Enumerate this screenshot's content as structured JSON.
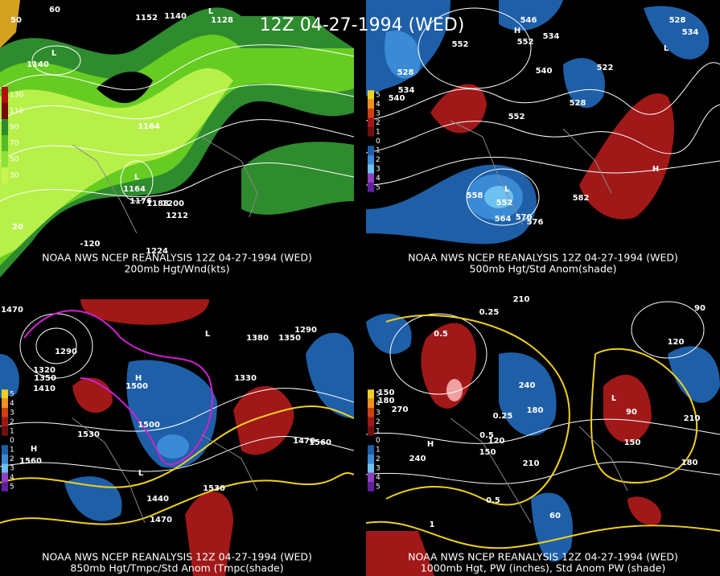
{
  "title": "12Z 04-27-1994 (WED)",
  "panels": [
    {
      "caption": "NOAA NWS NCEP REANALYSIS 12Z 04-27-1994 (WED)",
      "subcaption": "200mb Hgt/Wnd(kts)",
      "legend": [
        "130",
        "110",
        "90",
        "70",
        "50",
        "30"
      ],
      "labels": [
        "1152",
        "1140",
        "1128",
        "1140",
        "1164",
        "1164",
        "1176",
        "1188",
        "1200",
        "1212",
        "1224",
        "50",
        "20",
        "-120",
        "60",
        "L",
        "L",
        "L"
      ]
    },
    {
      "caption": "NOAA NWS NCEP REANALYSIS 12Z 04-27-1994 (WED)",
      "subcaption": "500mb Hgt/Std Anom(shade)",
      "legend": [
        "5",
        "4",
        "3",
        "2",
        "1",
        "0",
        "1",
        "2",
        "3",
        "4",
        "5"
      ],
      "labels": [
        "546",
        "552",
        "552",
        "534",
        "528",
        "534",
        "540",
        "540",
        "528",
        "522",
        "528",
        "534",
        "552",
        "558",
        "552",
        "564",
        "570",
        "576",
        "582",
        "H",
        "L",
        "H",
        "L"
      ]
    },
    {
      "caption": "NOAA NWS NCEP REANALYSIS 12Z 04-27-1994 (WED)",
      "subcaption": "850mb Hgt/Tmpc/Std Anom (Tmpc(shade)",
      "legend": [
        "5",
        "4",
        "3",
        "2",
        "1",
        "0",
        "1",
        "2",
        "3",
        "4",
        "5"
      ],
      "labels": [
        "1470",
        "1290",
        "1320",
        "1350",
        "1410",
        "1500",
        "1380",
        "1350",
        "1290",
        "1330",
        "1500",
        "1560",
        "1530",
        "1530",
        "1440",
        "1470",
        "1560",
        "1470",
        "H",
        "H",
        "L",
        "L"
      ]
    },
    {
      "caption": "NOAA NWS NCEP REANALYSIS 12Z 04-27-1994 (WED)",
      "subcaption": "1000mb Hgt, PW (inches), Std Anom PW (shade)",
      "legend": [
        "5",
        "4",
        "3",
        "2",
        "1",
        "0",
        "1",
        "2",
        "3",
        "4",
        "5"
      ],
      "labels": [
        "210",
        "0.25",
        "0.5",
        "90",
        "120",
        "150",
        "180",
        "270",
        "240",
        "180",
        "120",
        "150",
        "210",
        "240",
        "180",
        "210",
        "150",
        "0.5",
        "0.25",
        "0.5",
        "1",
        "60",
        "90",
        "H",
        "L"
      ]
    }
  ]
}
